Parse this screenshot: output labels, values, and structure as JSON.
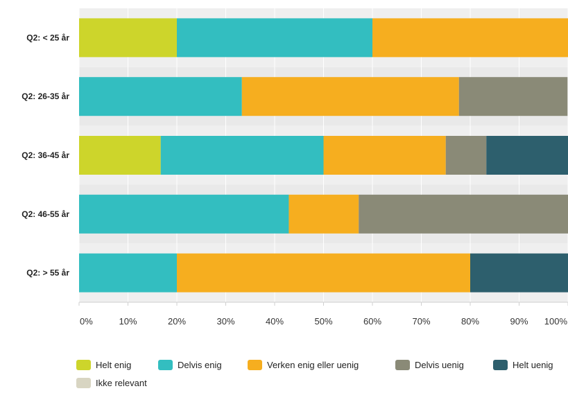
{
  "chart_data": {
    "type": "bar",
    "orientation": "horizontal",
    "stacked": true,
    "percent": true,
    "categories": [
      "Q2: < 25 år",
      "Q2: 26-35 år",
      "Q2: 36-45 år",
      "Q2: 46-55 år",
      "Q2: > 55 år"
    ],
    "series": [
      {
        "name": "Helt enig",
        "color": "#cdd52b",
        "values": [
          20,
          0,
          16.7,
          0,
          0
        ]
      },
      {
        "name": "Delvis enig",
        "color": "#33bec0",
        "values": [
          40,
          33.3,
          33.3,
          42.9,
          20
        ]
      },
      {
        "name": "Verken enig eller uenig",
        "color": "#f6ae1f",
        "values": [
          40,
          44.4,
          25,
          14.3,
          60
        ]
      },
      {
        "name": "Delvis uenig",
        "color": "#8a8a77",
        "values": [
          0,
          22.2,
          8.3,
          42.9,
          0
        ]
      },
      {
        "name": "Helt uenig",
        "color": "#2d5f6d",
        "values": [
          0,
          0,
          16.7,
          0,
          20
        ]
      },
      {
        "name": "Ikke relevant",
        "color": "#d8d5c2",
        "values": [
          0,
          0,
          0,
          0,
          0
        ]
      }
    ],
    "x_ticks": [
      "0%",
      "10%",
      "20%",
      "30%",
      "40%",
      "50%",
      "60%",
      "70%",
      "80%",
      "90%",
      "100%"
    ],
    "xlim": [
      0,
      100
    ],
    "grid": true,
    "legend_position": "bottom",
    "title": "",
    "xlabel": "",
    "ylabel": ""
  }
}
